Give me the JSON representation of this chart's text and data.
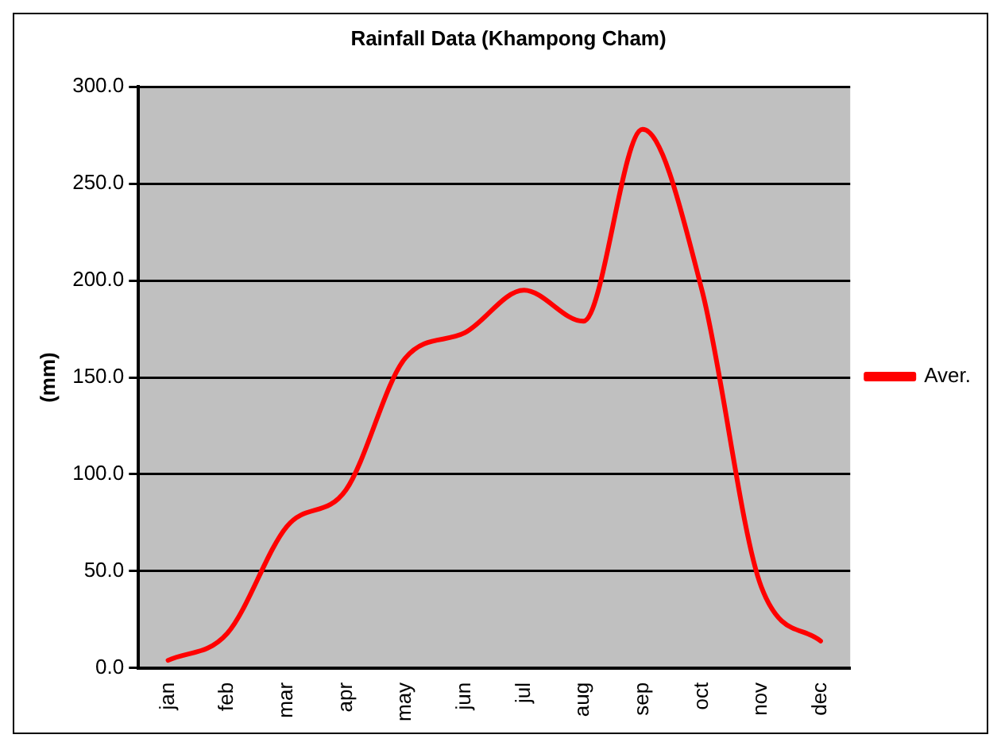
{
  "chart_data": {
    "type": "line",
    "title": "Rainfall Data (Khampong Cham)",
    "ylabel": "(mm)",
    "categories": [
      "jan",
      "feb",
      "mar",
      "apr",
      "may",
      "jun",
      "jul",
      "aug",
      "sep",
      "oct",
      "nov",
      "dec"
    ],
    "series": [
      {
        "name": "Aver.",
        "color": "#ff0000",
        "values": [
          4,
          18,
          73,
          92,
          160,
          173,
          195,
          179,
          278,
          195,
          42,
          14
        ]
      }
    ],
    "ylim": [
      0,
      300
    ],
    "yticks": [
      {
        "value": 0,
        "label": "0.0"
      },
      {
        "value": 50,
        "label": "50.0"
      },
      {
        "value": 100,
        "label": "100.0"
      },
      {
        "value": 150,
        "label": "150.0"
      },
      {
        "value": 200,
        "label": "200.0"
      },
      {
        "value": 250,
        "label": "250.0"
      },
      {
        "value": 300,
        "label": "300.0"
      }
    ],
    "grid": "y",
    "legend": "right",
    "marker": "none",
    "line_style": "solid"
  }
}
